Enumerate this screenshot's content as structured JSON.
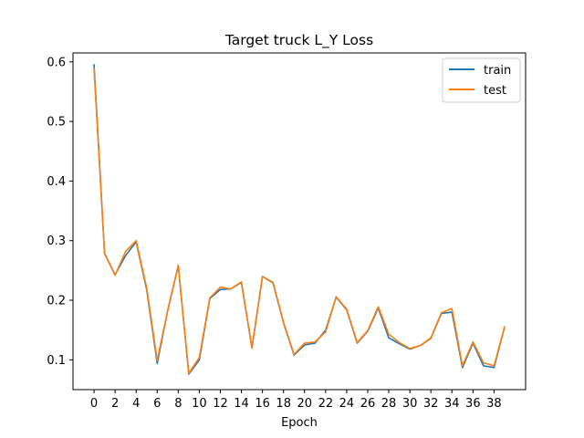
{
  "chart_data": {
    "type": "line",
    "title": "Target truck L_Y Loss",
    "xlabel": "Epoch",
    "ylabel": "",
    "xlim": [
      -2,
      41
    ],
    "ylim": [
      0.05,
      0.615
    ],
    "xticks": [
      0,
      2,
      4,
      6,
      8,
      10,
      12,
      14,
      16,
      18,
      20,
      22,
      24,
      26,
      28,
      30,
      32,
      34,
      36,
      38
    ],
    "yticks": [
      0.1,
      0.2,
      0.3,
      0.4,
      0.5,
      0.6
    ],
    "ytick_labels": [
      "0.1",
      "0.2",
      "0.3",
      "0.4",
      "0.5",
      "0.6"
    ],
    "grid": false,
    "legend_position": "upper right",
    "x": [
      0,
      1,
      2,
      3,
      4,
      5,
      6,
      7,
      8,
      9,
      10,
      11,
      12,
      13,
      14,
      15,
      16,
      17,
      18,
      19,
      20,
      21,
      22,
      23,
      24,
      25,
      26,
      27,
      28,
      29,
      30,
      31,
      32,
      33,
      34,
      35,
      36,
      37,
      38,
      39
    ],
    "series": [
      {
        "name": "train",
        "color": "#1f77b4",
        "values": [
          0.595,
          0.278,
          0.243,
          0.275,
          0.298,
          0.218,
          0.094,
          0.183,
          0.258,
          0.076,
          0.1,
          0.203,
          0.218,
          0.219,
          0.23,
          0.12,
          0.24,
          0.229,
          0.162,
          0.108,
          0.125,
          0.128,
          0.15,
          0.205,
          0.184,
          0.128,
          0.148,
          0.187,
          0.137,
          0.127,
          0.118,
          0.124,
          0.136,
          0.178,
          0.18,
          0.087,
          0.128,
          0.09,
          0.087,
          0.155
        ]
      },
      {
        "name": "test",
        "color": "#ff7f0e",
        "values": [
          0.588,
          0.279,
          0.242,
          0.282,
          0.3,
          0.221,
          0.099,
          0.183,
          0.259,
          0.077,
          0.104,
          0.204,
          0.222,
          0.219,
          0.231,
          0.12,
          0.24,
          0.23,
          0.163,
          0.109,
          0.128,
          0.13,
          0.147,
          0.206,
          0.185,
          0.129,
          0.149,
          0.189,
          0.143,
          0.129,
          0.119,
          0.124,
          0.137,
          0.179,
          0.186,
          0.09,
          0.13,
          0.095,
          0.09,
          0.155
        ]
      }
    ]
  }
}
